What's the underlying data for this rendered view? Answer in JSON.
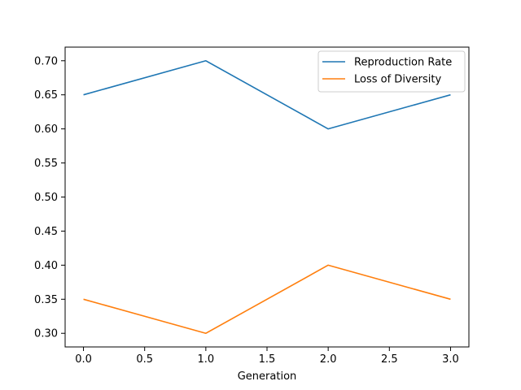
{
  "chart_data": {
    "type": "line",
    "title": "",
    "xlabel": "Generation",
    "ylabel": "",
    "x": [
      0,
      1,
      2,
      3
    ],
    "series": [
      {
        "name": "Reproduction Rate",
        "values": [
          0.65,
          0.7,
          0.6,
          0.65
        ],
        "color": "#1f77b4"
      },
      {
        "name": "Loss of Diversity",
        "values": [
          0.35,
          0.3,
          0.4,
          0.35
        ],
        "color": "#ff7f0e"
      }
    ],
    "xlim": [
      -0.15,
      3.15
    ],
    "ylim": [
      0.28,
      0.72
    ],
    "xticks": [
      "0.0",
      "0.5",
      "1.0",
      "1.5",
      "2.0",
      "2.5",
      "3.0"
    ],
    "yticks": [
      "0.30",
      "0.35",
      "0.40",
      "0.45",
      "0.50",
      "0.55",
      "0.60",
      "0.65",
      "0.70"
    ],
    "grid": false,
    "legend_position": "top-right"
  }
}
